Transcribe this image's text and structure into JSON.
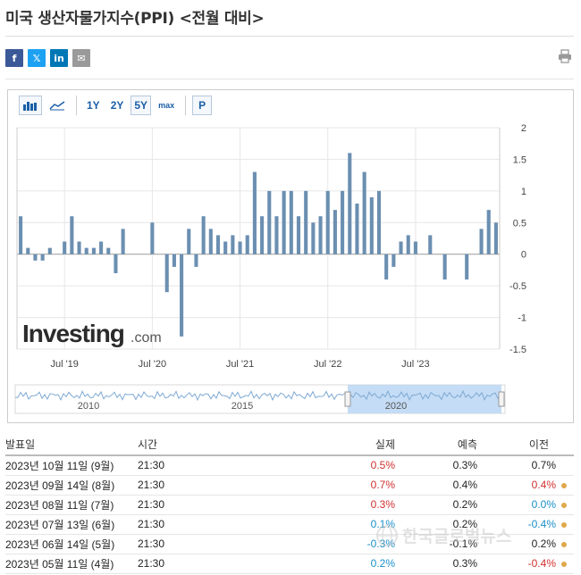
{
  "page": {
    "title": "미국 생산자물가지수(PPI) <전월 대비>"
  },
  "share": {
    "facebook": "f",
    "twitter": "𝕏",
    "linkedin": "in",
    "email": "✉"
  },
  "toolbar": {
    "ranges": [
      "1Y",
      "2Y",
      "5Y",
      "max"
    ],
    "active_range": "5Y",
    "p_label": "P"
  },
  "chart_data": {
    "type": "bar",
    "y_axis_labels": [
      "2",
      "1.5",
      "1",
      "0.5",
      "0",
      "-0.5",
      "-1",
      "-1.5"
    ],
    "ylim": [
      -1.5,
      2
    ],
    "x_tick_labels": [
      "Jul '19",
      "Jul '20",
      "Jul '21",
      "Jul '22",
      "Jul '23"
    ],
    "x_tick_months": [
      6,
      18,
      30,
      42,
      54
    ],
    "start_label": "2019-01",
    "values": [
      0.6,
      0.1,
      -0.1,
      -0.1,
      0.1,
      0.0,
      0.2,
      0.6,
      0.2,
      0.1,
      0.1,
      0.2,
      0.1,
      -0.3,
      0.4,
      0.0,
      0.0,
      0.0,
      0.5,
      0.0,
      -0.6,
      -0.2,
      -1.3,
      0.4,
      -0.2,
      0.6,
      0.4,
      0.3,
      0.2,
      0.3,
      0.2,
      0.3,
      1.3,
      0.6,
      1.0,
      0.6,
      1.0,
      1.0,
      0.6,
      1.0,
      0.5,
      0.6,
      1.0,
      0.7,
      1.0,
      1.6,
      0.8,
      1.3,
      0.9,
      1.0,
      -0.4,
      -0.2,
      0.2,
      0.3,
      0.2,
      0.0,
      0.3,
      0.0,
      -0.4,
      0.0,
      0.0,
      -0.4,
      0.0,
      0.4,
      0.7,
      0.5
    ],
    "bar_color": "#6b8fb1",
    "navigator_labels": [
      "2010",
      "2015",
      "2020"
    ]
  },
  "watermark": "한국글로벌뉴스",
  "table": {
    "headers": [
      "발표일",
      "시간",
      "실제",
      "예측",
      "이전"
    ],
    "rows": [
      {
        "date": "2023년 10월 11일 (9월)",
        "time": "21:30",
        "actual": "0.5%",
        "actual_color": "red",
        "forecast": "0.3%",
        "previous": "0.7%",
        "previous_color": "black",
        "dot": false
      },
      {
        "date": "2023년 09월 14일 (8월)",
        "time": "21:30",
        "actual": "0.7%",
        "actual_color": "red",
        "forecast": "0.4%",
        "previous": "0.4%",
        "previous_color": "red",
        "dot": true
      },
      {
        "date": "2023년 08월 11일 (7월)",
        "time": "21:30",
        "actual": "0.3%",
        "actual_color": "red",
        "forecast": "0.2%",
        "previous": "0.0%",
        "previous_color": "blue",
        "dot": true
      },
      {
        "date": "2023년 07월 13일 (6월)",
        "time": "21:30",
        "actual": "0.1%",
        "actual_color": "blue",
        "forecast": "0.2%",
        "previous": "-0.4%",
        "previous_color": "blue",
        "dot": true
      },
      {
        "date": "2023년 06월 14일 (5월)",
        "time": "21:30",
        "actual": "-0.3%",
        "actual_color": "blue",
        "forecast": "-0.1%",
        "previous": "0.2%",
        "previous_color": "black",
        "dot": true
      },
      {
        "date": "2023년 05월 11일 (4월)",
        "time": "21:30",
        "actual": "0.2%",
        "actual_color": "blue",
        "forecast": "0.3%",
        "previous": "-0.4%",
        "previous_color": "red",
        "dot": true
      }
    ]
  }
}
